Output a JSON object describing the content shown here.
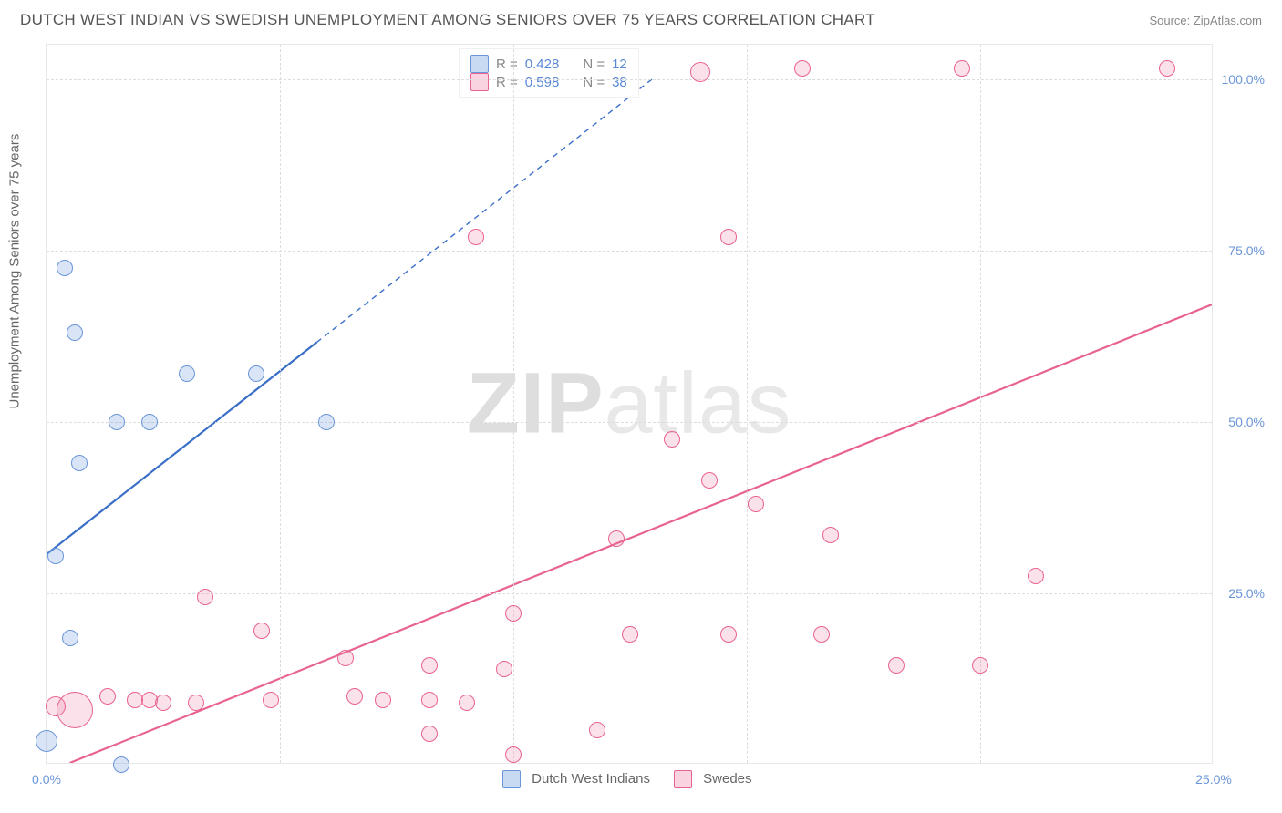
{
  "title": "DUTCH WEST INDIAN VS SWEDISH UNEMPLOYMENT AMONG SENIORS OVER 75 YEARS CORRELATION CHART",
  "source": "Source: ZipAtlas.com",
  "y_axis_label": "Unemployment Among Seniors over 75 years",
  "watermark_bold": "ZIP",
  "watermark_light": "atlas",
  "chart": {
    "type": "scatter",
    "xlim": [
      0,
      25
    ],
    "ylim": [
      0,
      105
    ],
    "x_ticks": [
      0.0,
      25.0
    ],
    "y_ticks": [
      25.0,
      50.0,
      75.0,
      100.0
    ],
    "y_tick_suffix": "%",
    "x_tick_suffix": "%",
    "background_color": "#ffffff",
    "border_color": "#e8e8e8",
    "grid_color": "#dddddd",
    "grid_dash": "4,4",
    "axis_label_color": "#666666",
    "tick_label_color": "#6a95d8",
    "tick_fontsize": 14,
    "axis_fontsize": 15
  },
  "series": {
    "dwi": {
      "label": "Dutch West Indians",
      "R": "0.428",
      "N": "12",
      "fill": "rgba(118,160,222,0.28)",
      "stroke": "#6a95d8",
      "line_color": "#3a6fc8",
      "line_width": 2.2,
      "trend_solid": {
        "x1": 0.0,
        "y1": 30.5,
        "x2": 5.8,
        "y2": 61.5
      },
      "trend_dash": {
        "x1": 5.8,
        "y1": 61.5,
        "x2": 13.0,
        "y2": 100.0
      },
      "points": [
        {
          "x": 0.4,
          "y": 72.5,
          "r": 9
        },
        {
          "x": 0.6,
          "y": 63.0,
          "r": 9
        },
        {
          "x": 3.0,
          "y": 57.0,
          "r": 9
        },
        {
          "x": 4.5,
          "y": 57.0,
          "r": 9
        },
        {
          "x": 1.5,
          "y": 50.0,
          "r": 9
        },
        {
          "x": 2.2,
          "y": 50.0,
          "r": 9
        },
        {
          "x": 6.0,
          "y": 50.0,
          "r": 9
        },
        {
          "x": 0.7,
          "y": 44.0,
          "r": 9
        },
        {
          "x": 0.2,
          "y": 30.5,
          "r": 9
        },
        {
          "x": 0.5,
          "y": 18.5,
          "r": 9
        },
        {
          "x": 0.0,
          "y": 3.5,
          "r": 12
        },
        {
          "x": 1.6,
          "y": 0.0,
          "r": 9
        }
      ]
    },
    "swedes": {
      "label": "Swedes",
      "R": "0.598",
      "N": "38",
      "fill": "rgba(236,120,158,0.22)",
      "stroke": "#e8638f",
      "line_color": "#e8638f",
      "line_width": 2.2,
      "trend_solid": {
        "x1": 0.5,
        "y1": 0.0,
        "x2": 25.0,
        "y2": 67.0
      },
      "points": [
        {
          "x": 16.2,
          "y": 101.5,
          "r": 9
        },
        {
          "x": 19.6,
          "y": 101.5,
          "r": 9
        },
        {
          "x": 24.0,
          "y": 101.5,
          "r": 9
        },
        {
          "x": 14.0,
          "y": 101.0,
          "r": 11
        },
        {
          "x": 9.2,
          "y": 77.0,
          "r": 9
        },
        {
          "x": 14.6,
          "y": 77.0,
          "r": 9
        },
        {
          "x": 13.4,
          "y": 47.5,
          "r": 9
        },
        {
          "x": 14.2,
          "y": 41.5,
          "r": 9
        },
        {
          "x": 15.2,
          "y": 38.0,
          "r": 9
        },
        {
          "x": 16.8,
          "y": 33.5,
          "r": 9
        },
        {
          "x": 12.2,
          "y": 33.0,
          "r": 9
        },
        {
          "x": 21.2,
          "y": 27.5,
          "r": 9
        },
        {
          "x": 3.4,
          "y": 24.5,
          "r": 9
        },
        {
          "x": 10.0,
          "y": 22.0,
          "r": 9
        },
        {
          "x": 4.6,
          "y": 19.5,
          "r": 9
        },
        {
          "x": 12.5,
          "y": 19.0,
          "r": 9
        },
        {
          "x": 14.6,
          "y": 19.0,
          "r": 9
        },
        {
          "x": 16.6,
          "y": 19.0,
          "r": 9
        },
        {
          "x": 6.4,
          "y": 15.5,
          "r": 9
        },
        {
          "x": 8.2,
          "y": 14.5,
          "r": 9
        },
        {
          "x": 9.8,
          "y": 14.0,
          "r": 9
        },
        {
          "x": 18.2,
          "y": 14.5,
          "r": 9
        },
        {
          "x": 20.0,
          "y": 14.5,
          "r": 9
        },
        {
          "x": 6.6,
          "y": 10.0,
          "r": 9
        },
        {
          "x": 7.2,
          "y": 9.5,
          "r": 9
        },
        {
          "x": 8.2,
          "y": 9.5,
          "r": 9
        },
        {
          "x": 9.0,
          "y": 9.0,
          "r": 9
        },
        {
          "x": 4.8,
          "y": 9.5,
          "r": 9
        },
        {
          "x": 1.3,
          "y": 10.0,
          "r": 9
        },
        {
          "x": 1.9,
          "y": 9.5,
          "r": 9
        },
        {
          "x": 2.5,
          "y": 9.0,
          "r": 9
        },
        {
          "x": 3.2,
          "y": 9.0,
          "r": 9
        },
        {
          "x": 0.6,
          "y": 8.0,
          "r": 20
        },
        {
          "x": 0.2,
          "y": 8.5,
          "r": 11
        },
        {
          "x": 11.8,
          "y": 5.0,
          "r": 9
        },
        {
          "x": 8.2,
          "y": 4.5,
          "r": 9
        },
        {
          "x": 10.0,
          "y": 1.5,
          "r": 9
        },
        {
          "x": 2.2,
          "y": 9.5,
          "r": 9
        }
      ]
    }
  },
  "legend_top": {
    "rows": [
      {
        "swatch_fill": "rgba(118,160,222,0.4)",
        "swatch_stroke": "#6a95d8",
        "r_label": "R =",
        "r_val": "0.428",
        "n_label": "N =",
        "n_val": "12",
        "val_color": "#5a88d6"
      },
      {
        "swatch_fill": "rgba(236,120,158,0.32)",
        "swatch_stroke": "#e8638f",
        "r_label": "R =",
        "r_val": "0.598",
        "n_label": "N =",
        "n_val": "38",
        "val_color": "#5a88d6"
      }
    ]
  },
  "legend_bottom": {
    "items": [
      {
        "swatch_fill": "rgba(118,160,222,0.4)",
        "swatch_stroke": "#6a95d8",
        "label": "Dutch West Indians"
      },
      {
        "swatch_fill": "rgba(236,120,158,0.32)",
        "swatch_stroke": "#e8638f",
        "label": "Swedes"
      }
    ]
  }
}
